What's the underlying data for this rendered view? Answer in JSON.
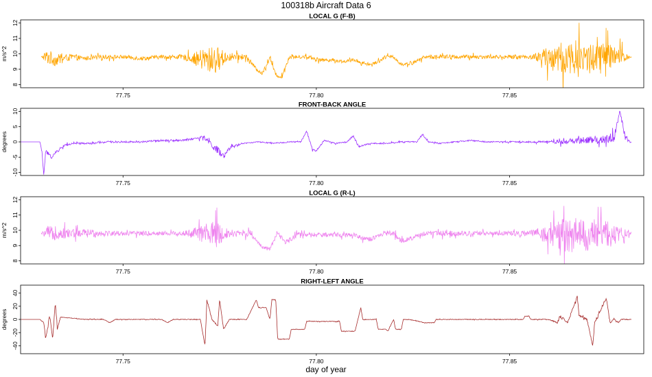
{
  "title": "100318b   Aircraft Data 6",
  "xlabel": "day of year",
  "chart_data": [
    {
      "type": "line",
      "title": "LOCAL G (F-B)",
      "ylabel": "m/s^2",
      "color": "#FFA500",
      "xlim": [
        77.7235,
        77.8847
      ],
      "ylim": [
        7.8,
        12.2
      ],
      "xticks": [
        77.75,
        77.8,
        77.85
      ],
      "xtick_labels": [
        "77.75",
        "77.80",
        "77.85"
      ],
      "yticks": [
        8,
        9,
        10,
        11,
        12
      ],
      "ytick_labels": [
        "8",
        "9",
        "10",
        "11",
        "12"
      ],
      "series": [
        {
          "x": [
            77.7288,
            77.7305,
            77.7325,
            77.7345,
            77.737,
            77.74,
            77.745,
            77.75,
            77.755,
            77.76,
            77.765,
            77.768,
            77.771,
            77.774,
            77.777,
            77.78,
            77.782,
            77.7845,
            77.786,
            77.788,
            77.7895,
            77.791,
            77.793,
            77.795,
            77.798,
            77.801,
            77.804,
            77.807,
            77.81,
            77.812,
            77.814,
            77.816,
            77.818,
            77.82,
            77.822,
            77.825,
            77.828,
            77.831,
            77.834,
            77.837,
            77.84,
            77.843,
            77.846,
            77.849,
            77.852,
            77.855,
            77.858,
            77.861,
            77.864,
            77.867,
            77.87,
            77.873,
            77.876,
            77.879,
            77.8815
          ],
          "y": [
            9.8,
            9.8,
            9.6,
            9.7,
            9.8,
            9.7,
            9.8,
            9.8,
            9.7,
            9.8,
            9.8,
            9.7,
            9.6,
            9.6,
            9.8,
            9.8,
            9.8,
            9.0,
            8.7,
            9.8,
            8.6,
            8.5,
            9.8,
            9.8,
            9.8,
            9.6,
            9.6,
            9.5,
            9.6,
            9.4,
            9.3,
            9.5,
            9.8,
            9.8,
            9.3,
            9.4,
            9.8,
            9.8,
            9.8,
            9.8,
            9.8,
            9.8,
            9.8,
            9.8,
            9.8,
            9.8,
            9.8,
            9.7,
            9.7,
            9.8,
            9.7,
            9.7,
            9.8,
            9.8,
            9.8
          ],
          "noise": [
            0.0,
            0.5,
            0.4,
            0.25,
            0.2,
            0.12,
            0.15,
            0.12,
            0.15,
            0.12,
            0.15,
            0.3,
            0.8,
            0.9,
            0.3,
            0.2,
            0.15,
            0.1,
            0.1,
            0.2,
            0.1,
            0.1,
            0.15,
            0.1,
            0.12,
            0.12,
            0.12,
            0.1,
            0.12,
            0.1,
            0.1,
            0.12,
            0.12,
            0.12,
            0.1,
            0.12,
            0.12,
            0.15,
            0.15,
            0.12,
            0.15,
            0.12,
            0.12,
            0.12,
            0.15,
            0.12,
            0.4,
            0.9,
            1.1,
            1.1,
            1.0,
            1.1,
            0.9,
            0.5,
            0.05
          ]
        }
      ]
    },
    {
      "type": "line",
      "title": "FRONT-BACK ANGLE",
      "ylabel": "degrees",
      "color": "#9B30FF",
      "xlim": [
        77.7235,
        77.8847
      ],
      "ylim": [
        -11,
        11
      ],
      "xticks": [
        77.75,
        77.8,
        77.85
      ],
      "xtick_labels": [
        "77.75",
        "77.80",
        "77.85"
      ],
      "yticks": [
        -10,
        -5,
        0,
        5,
        10
      ],
      "ytick_labels": [
        "-10",
        "-5",
        "0",
        "5",
        "10"
      ],
      "series": [
        {
          "x": [
            77.7235,
            77.7285,
            77.729,
            77.7295,
            77.73,
            77.7315,
            77.733,
            77.735,
            77.738,
            77.742,
            77.746,
            77.75,
            77.755,
            77.76,
            77.765,
            77.768,
            77.771,
            77.773,
            77.7745,
            77.776,
            77.778,
            77.781,
            77.785,
            77.789,
            77.793,
            77.796,
            77.7975,
            77.799,
            77.8,
            77.802,
            77.805,
            77.808,
            77.8095,
            77.811,
            77.814,
            77.818,
            77.822,
            77.826,
            77.8275,
            77.829,
            77.832,
            77.836,
            77.84,
            77.844,
            77.848,
            77.852,
            77.856,
            77.86,
            77.864,
            77.868,
            77.872,
            77.875,
            77.877,
            77.8785,
            77.88,
            77.8815
          ],
          "y": [
            0,
            0,
            -3,
            -11,
            -3,
            -5,
            -3,
            -1,
            -0.5,
            -0.5,
            0,
            0,
            0,
            0.5,
            0.5,
            1,
            1.5,
            -1,
            -3,
            -5,
            -1.5,
            -0.5,
            0,
            -0.5,
            0,
            0,
            3.5,
            -2.5,
            -3,
            0.5,
            -0.5,
            0,
            2,
            -1.5,
            -0.5,
            -0.5,
            0,
            0,
            2.5,
            0,
            -0.5,
            0,
            0.5,
            0,
            0,
            0,
            0,
            0,
            0,
            0.5,
            0.5,
            1,
            1.5,
            10,
            1,
            0
          ],
          "noise": [
            0,
            0,
            0.5,
            0,
            0.6,
            0.5,
            0.5,
            0.4,
            0.3,
            0.3,
            0.3,
            0.3,
            0.3,
            0.3,
            0.3,
            0.4,
            0.6,
            1.0,
            1.5,
            1.2,
            0.4,
            0.2,
            0.2,
            0.2,
            0.2,
            0.2,
            0.3,
            0.3,
            0.3,
            0.2,
            0.2,
            0.2,
            0.3,
            0.3,
            0.2,
            0.2,
            0.2,
            0.2,
            0.3,
            0.2,
            0.2,
            0.2,
            0.2,
            0.2,
            0.2,
            0.2,
            0.3,
            0.4,
            0.8,
            1.0,
            1.3,
            1.4,
            1.5,
            0.5,
            1.2,
            0.3
          ]
        }
      ]
    },
    {
      "type": "line",
      "title": "LOCAL G (R-L)",
      "ylabel": "m/s^2",
      "color": "#EE82EE",
      "xlim": [
        77.7235,
        77.8847
      ],
      "ylim": [
        7.8,
        12.2
      ],
      "xticks": [
        77.75,
        77.8,
        77.85
      ],
      "xtick_labels": [
        "77.75",
        "77.80",
        "77.85"
      ],
      "yticks": [
        8,
        9,
        10,
        11,
        12
      ],
      "ytick_labels": [
        "8",
        "9",
        "10",
        "11",
        "12"
      ],
      "series": [
        {
          "x": [
            77.7288,
            77.7305,
            77.733,
            77.737,
            77.741,
            77.745,
            77.75,
            77.755,
            77.76,
            77.765,
            77.768,
            77.771,
            77.774,
            77.777,
            77.78,
            77.783,
            77.785,
            77.786,
            77.788,
            77.79,
            77.792,
            77.795,
            77.798,
            77.801,
            77.804,
            77.807,
            77.81,
            77.812,
            77.814,
            77.816,
            77.818,
            77.82,
            77.822,
            77.825,
            77.828,
            77.831,
            77.835,
            77.84,
            77.845,
            77.85,
            77.855,
            77.858,
            77.861,
            77.864,
            77.867,
            77.87,
            77.873,
            77.876,
            77.879,
            77.8815
          ],
          "y": [
            9.8,
            9.8,
            9.8,
            9.8,
            9.8,
            9.8,
            9.8,
            9.8,
            9.8,
            9.8,
            9.8,
            9.8,
            9.7,
            9.8,
            9.8,
            9.8,
            9.2,
            8.9,
            8.8,
            9.8,
            9.2,
            9.7,
            9.7,
            9.7,
            9.7,
            9.7,
            9.7,
            9.5,
            9.4,
            9.6,
            9.8,
            9.8,
            9.3,
            9.5,
            9.8,
            9.8,
            9.8,
            9.8,
            9.8,
            9.8,
            9.8,
            9.8,
            9.7,
            9.7,
            9.7,
            9.7,
            9.7,
            9.8,
            9.8,
            9.8
          ],
          "noise": [
            0,
            0.5,
            0.4,
            0.3,
            0.3,
            0.2,
            0.15,
            0.15,
            0.15,
            0.15,
            0.3,
            0.7,
            0.9,
            0.3,
            0.2,
            0.2,
            0.1,
            0.1,
            0.1,
            0.15,
            0.15,
            0.15,
            0.15,
            0.15,
            0.15,
            0.15,
            0.15,
            0.15,
            0.15,
            0.15,
            0.15,
            0.15,
            0.15,
            0.15,
            0.15,
            0.2,
            0.2,
            0.15,
            0.15,
            0.15,
            0.2,
            0.4,
            0.9,
            1.1,
            1.2,
            1.1,
            1.0,
            0.9,
            0.4,
            0.05
          ]
        }
      ]
    },
    {
      "type": "line",
      "title": "RIGHT-LEFT ANGLE",
      "ylabel": "degrees",
      "color": "#A52A2A",
      "xlim": [
        77.7235,
        77.8847
      ],
      "ylim": [
        -52,
        52
      ],
      "xticks": [
        77.75,
        77.8,
        77.85
      ],
      "xtick_labels": [
        "77.75",
        "77.80",
        "77.85"
      ],
      "yticks": [
        -40,
        -20,
        0,
        20,
        40
      ],
      "ytick_labels": [
        "-40",
        "-20",
        "0",
        "20",
        "40"
      ],
      "series": [
        {
          "x": [
            77.7235,
            77.7285,
            77.7295,
            77.73,
            77.731,
            77.7318,
            77.7325,
            77.733,
            77.7338,
            77.735,
            77.74,
            77.745,
            77.7465,
            77.748,
            77.755,
            77.76,
            77.7615,
            77.763,
            77.77,
            77.7712,
            77.7717,
            77.773,
            77.7745,
            77.775,
            77.776,
            77.7775,
            77.778,
            77.782,
            77.7845,
            77.785,
            77.787,
            77.788,
            77.7885,
            77.7895,
            77.79,
            77.791,
            77.793,
            77.7935,
            77.794,
            77.797,
            77.7975,
            77.798,
            77.8,
            77.8005,
            77.806,
            77.8065,
            77.8095,
            77.81,
            77.8115,
            77.812,
            77.8155,
            77.816,
            77.818,
            77.8185,
            77.82,
            77.8205,
            77.822,
            77.8225,
            77.824,
            77.828,
            77.8305,
            77.831,
            77.833,
            77.8375,
            77.838,
            77.845,
            77.8535,
            77.854,
            77.855,
            77.8555,
            77.86,
            77.8625,
            77.863,
            77.865,
            77.8675,
            77.868,
            77.87,
            77.8715,
            77.872,
            77.875,
            77.876,
            77.877,
            77.878,
            77.879,
            77.88,
            77.8815
          ],
          "y": [
            0,
            0,
            -5,
            -30,
            5,
            -28,
            25,
            -15,
            3,
            3,
            0,
            0,
            -5,
            0,
            0,
            0,
            -5,
            0,
            0,
            -40,
            30,
            0,
            -10,
            30,
            -15,
            0,
            0,
            0,
            30,
            18,
            18,
            0,
            30,
            30,
            -30,
            -30,
            -30,
            -15,
            -15,
            -15,
            -3,
            -3,
            -3,
            -3,
            -3,
            -18,
            -18,
            -18,
            18,
            0,
            0,
            -15,
            -15,
            -18,
            0,
            -15,
            -15,
            0,
            0,
            -5,
            -5,
            0,
            0,
            0,
            0,
            0,
            0,
            5,
            5,
            0,
            0,
            -5,
            5,
            -5,
            35,
            5,
            0,
            -40,
            -5,
            32,
            -5,
            0,
            -5,
            0,
            0,
            0
          ],
          "noise": [
            0,
            0,
            1.0,
            2.5,
            2.5,
            2.5,
            2.5,
            2.0,
            0.5,
            0.5,
            0.5,
            0.5,
            0.5,
            0.5,
            0.5,
            0.5,
            0.5,
            0.5,
            0.5,
            1.0,
            1.5,
            0.5,
            1.0,
            1.0,
            1.0,
            0.8,
            0.5,
            0.5,
            0.5,
            0.5,
            0.5,
            0.5,
            0.5,
            0.5,
            0.5,
            0.5,
            0.5,
            0.5,
            0.5,
            0.5,
            0.5,
            0.5,
            0.5,
            0.5,
            0.5,
            0.5,
            0.5,
            0.5,
            0.5,
            0.5,
            0.5,
            0.5,
            0.5,
            0.5,
            0.5,
            0.5,
            0.5,
            0.5,
            0.5,
            0.5,
            0.5,
            0.5,
            0.5,
            0.5,
            0.5,
            0.5,
            0.5,
            0.5,
            0.5,
            0.5,
            0.6,
            1.5,
            2.0,
            2.0,
            2.0,
            2.0,
            1.5,
            1.5,
            1.5,
            1.5,
            1.5,
            1.5,
            1.5,
            1.0,
            0.8,
            0.3
          ]
        }
      ]
    }
  ]
}
